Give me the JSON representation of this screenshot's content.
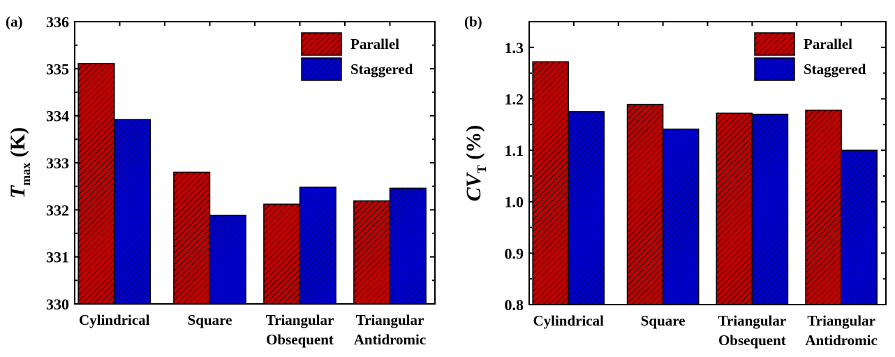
{
  "colors": {
    "parallel": "#c00000",
    "staggered": "#0000cc",
    "hatch": "#000000"
  },
  "chart_data": [
    {
      "type": "bar",
      "panel_label": "(a)",
      "ylabel_main": "T",
      "ylabel_sub": "max",
      "ylabel_unit": "(K)",
      "categories": [
        [
          "Cylindrical"
        ],
        [
          "Square"
        ],
        [
          "Triangular",
          "Obsequent"
        ],
        [
          "Triangular",
          "Antidromic"
        ]
      ],
      "ylim": [
        330,
        336
      ],
      "yticks": [
        "330",
        "331",
        "332",
        "333",
        "334",
        "335",
        "336"
      ],
      "legend_position": "top-right",
      "series": [
        {
          "name": "Parallel",
          "values": [
            335.11,
            332.8,
            332.12,
            332.19
          ]
        },
        {
          "name": "Staggered",
          "values": [
            333.92,
            331.88,
            332.48,
            332.46
          ]
        }
      ]
    },
    {
      "type": "bar",
      "panel_label": "(b)",
      "ylabel_main": "CV",
      "ylabel_sub": "T",
      "ylabel_unit": "(%)",
      "categories": [
        [
          "Cylindrical"
        ],
        [
          "Square"
        ],
        [
          "Triangular",
          "Obsequent"
        ],
        [
          "Triangular",
          "Antidromic"
        ]
      ],
      "ylim": [
        0.8,
        1.35
      ],
      "yticks": [
        "0.8",
        "0.9",
        "1.0",
        "1.1",
        "1.2",
        "1.3"
      ],
      "legend_position": "top-right",
      "series": [
        {
          "name": "Parallel",
          "values": [
            1.272,
            1.189,
            1.172,
            1.178
          ]
        },
        {
          "name": "Staggered",
          "values": [
            1.175,
            1.141,
            1.17,
            1.1
          ]
        }
      ]
    }
  ]
}
